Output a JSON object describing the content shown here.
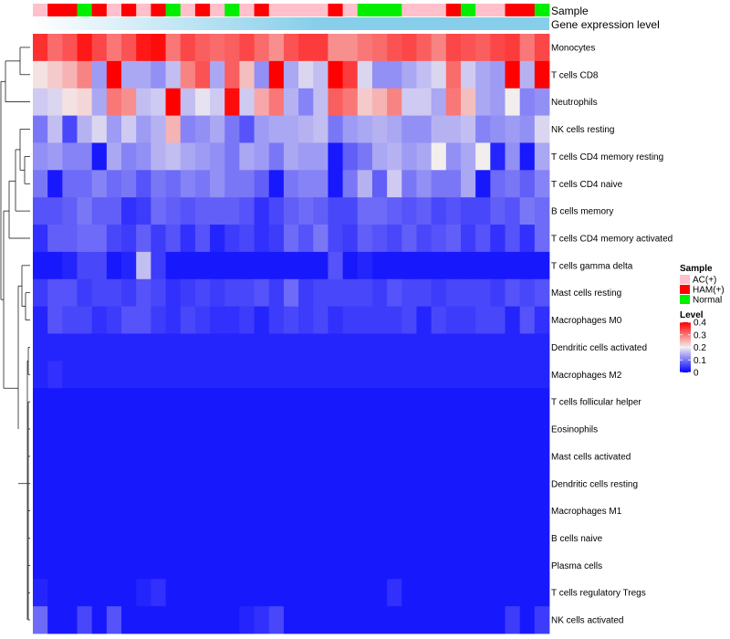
{
  "chart_data": {
    "type": "heatmap",
    "title": "",
    "annotation_labels": {
      "sample": "Sample",
      "gene_expression": "Gene expression level"
    },
    "rows": [
      "Monocytes",
      "T cells CD8",
      "Neutrophils",
      "NK cells resting",
      "T cells CD4 memory resting",
      "T cells CD4 naive",
      "B cells memory",
      "T cells CD4 memory activated",
      "T cells gamma delta",
      "Mast cells resting",
      "Macrophages M0",
      "Dendritic cells activated",
      "Macrophages M2",
      "T cells follicular helper",
      "Eosinophils",
      "Mast cells activated",
      "Dendritic cells resting",
      "Macrophages M1",
      "B cells naive",
      "Plasma cells",
      "T cells regulatory  Tregs",
      "NK cells activated"
    ],
    "sample_groups": [
      "AC",
      "HAM",
      "HAM",
      "NOR",
      "HAM",
      "AC",
      "HAM",
      "AC",
      "HAM",
      "NOR",
      "AC",
      "HAM",
      "AC",
      "NOR",
      "AC",
      "HAM",
      "AC",
      "AC",
      "AC",
      "AC",
      "HAM",
      "AC",
      "NOR",
      "NOR",
      "NOR",
      "AC",
      "AC",
      "AC",
      "HAM",
      "NOR",
      "AC",
      "AC",
      "HAM",
      "HAM",
      "NOR"
    ],
    "color_scale": {
      "min": 0,
      "max": 0.4,
      "stops": [
        {
          "v": 0,
          "color": "#0000FF"
        },
        {
          "v": 0.2,
          "color": "#F3EEEE"
        },
        {
          "v": 0.4,
          "color": "#FF0000"
        }
      ]
    },
    "values": [
      [
        0.36,
        0.31,
        0.33,
        0.38,
        0.34,
        0.3,
        0.33,
        0.38,
        0.39,
        0.3,
        0.34,
        0.32,
        0.31,
        0.32,
        0.34,
        0.31,
        0.28,
        0.33,
        0.35,
        0.35,
        0.28,
        0.28,
        0.3,
        0.31,
        0.33,
        0.34,
        0.32,
        0.29,
        0.34,
        0.33,
        0.32,
        0.34,
        0.35,
        0.3,
        0.34
      ],
      [
        0.21,
        0.23,
        0.25,
        0.29,
        0.13,
        0.4,
        0.14,
        0.14,
        0.12,
        0.16,
        0.29,
        0.33,
        0.14,
        0.32,
        0.24,
        0.12,
        0.4,
        0.14,
        0.18,
        0.16,
        0.4,
        0.35,
        0.18,
        0.12,
        0.12,
        0.14,
        0.16,
        0.18,
        0.31,
        0.17,
        0.14,
        0.13,
        0.4,
        0.15,
        0.4
      ],
      [
        0.17,
        0.18,
        0.21,
        0.22,
        0.14,
        0.3,
        0.28,
        0.16,
        0.17,
        0.4,
        0.16,
        0.19,
        0.17,
        0.39,
        0.17,
        0.26,
        0.3,
        0.15,
        0.11,
        0.16,
        0.32,
        0.3,
        0.23,
        0.25,
        0.29,
        0.17,
        0.17,
        0.14,
        0.3,
        0.24,
        0.14,
        0.13,
        0.2,
        0.11,
        0.12
      ],
      [
        0.1,
        0.16,
        0.06,
        0.15,
        0.18,
        0.13,
        0.17,
        0.13,
        0.15,
        0.25,
        0.11,
        0.12,
        0.14,
        0.1,
        0.07,
        0.13,
        0.14,
        0.14,
        0.15,
        0.16,
        0.1,
        0.13,
        0.14,
        0.15,
        0.14,
        0.12,
        0.12,
        0.15,
        0.15,
        0.16,
        0.11,
        0.12,
        0.13,
        0.12,
        0.18
      ],
      [
        0.12,
        0.13,
        0.11,
        0.11,
        0.02,
        0.14,
        0.11,
        0.12,
        0.15,
        0.16,
        0.14,
        0.13,
        0.12,
        0.1,
        0.14,
        0.13,
        0.1,
        0.14,
        0.13,
        0.13,
        0.02,
        0.08,
        0.1,
        0.14,
        0.15,
        0.13,
        0.14,
        0.2,
        0.12,
        0.14,
        0.2,
        0.03,
        0.12,
        0.02,
        0.14
      ],
      [
        0.1,
        0.02,
        0.09,
        0.09,
        0.11,
        0.09,
        0.1,
        0.07,
        0.1,
        0.09,
        0.11,
        0.1,
        0.12,
        0.1,
        0.1,
        0.08,
        0.02,
        0.1,
        0.11,
        0.11,
        0.02,
        0.1,
        0.15,
        0.08,
        0.17,
        0.1,
        0.12,
        0.1,
        0.1,
        0.14,
        0.02,
        0.09,
        0.1,
        0.08,
        0.11
      ],
      [
        0.07,
        0.07,
        0.08,
        0.1,
        0.08,
        0.08,
        0.04,
        0.05,
        0.09,
        0.08,
        0.07,
        0.08,
        0.08,
        0.08,
        0.07,
        0.04,
        0.06,
        0.08,
        0.09,
        0.08,
        0.06,
        0.06,
        0.09,
        0.09,
        0.08,
        0.07,
        0.08,
        0.06,
        0.07,
        0.06,
        0.06,
        0.08,
        0.07,
        0.1,
        0.09
      ],
      [
        0.04,
        0.08,
        0.08,
        0.09,
        0.09,
        0.06,
        0.05,
        0.08,
        0.05,
        0.07,
        0.04,
        0.07,
        0.03,
        0.05,
        0.06,
        0.04,
        0.05,
        0.09,
        0.07,
        0.1,
        0.06,
        0.05,
        0.08,
        0.07,
        0.06,
        0.08,
        0.06,
        0.07,
        0.08,
        0.05,
        0.07,
        0.04,
        0.07,
        0.04,
        0.09
      ],
      [
        0.02,
        0.02,
        0.03,
        0.06,
        0.06,
        0.02,
        0.03,
        0.16,
        0.05,
        0.02,
        0.02,
        0.02,
        0.02,
        0.02,
        0.02,
        0.02,
        0.02,
        0.02,
        0.02,
        0.02,
        0.07,
        0.02,
        0.03,
        0.02,
        0.02,
        0.02,
        0.02,
        0.02,
        0.02,
        0.02,
        0.02,
        0.02,
        0.02,
        0.02,
        0.02
      ],
      [
        0.05,
        0.07,
        0.07,
        0.05,
        0.06,
        0.06,
        0.05,
        0.07,
        0.06,
        0.04,
        0.05,
        0.06,
        0.05,
        0.06,
        0.06,
        0.07,
        0.05,
        0.09,
        0.05,
        0.06,
        0.06,
        0.06,
        0.06,
        0.05,
        0.07,
        0.06,
        0.06,
        0.05,
        0.06,
        0.06,
        0.06,
        0.05,
        0.07,
        0.06,
        0.07
      ],
      [
        0.03,
        0.07,
        0.06,
        0.06,
        0.04,
        0.05,
        0.07,
        0.07,
        0.05,
        0.04,
        0.06,
        0.05,
        0.04,
        0.04,
        0.05,
        0.03,
        0.05,
        0.06,
        0.05,
        0.06,
        0.04,
        0.05,
        0.05,
        0.05,
        0.05,
        0.06,
        0.03,
        0.06,
        0.05,
        0.05,
        0.06,
        0.06,
        0.03,
        0.07,
        0.04
      ],
      [
        0.03,
        0.03,
        0.03,
        0.03,
        0.03,
        0.03,
        0.03,
        0.03,
        0.03,
        0.03,
        0.03,
        0.03,
        0.03,
        0.03,
        0.03,
        0.03,
        0.03,
        0.03,
        0.03,
        0.03,
        0.03,
        0.03,
        0.03,
        0.03,
        0.03,
        0.03,
        0.03,
        0.03,
        0.03,
        0.03,
        0.03,
        0.03,
        0.03,
        0.03,
        0.03
      ],
      [
        0.03,
        0.04,
        0.03,
        0.03,
        0.03,
        0.03,
        0.03,
        0.03,
        0.03,
        0.03,
        0.03,
        0.03,
        0.03,
        0.03,
        0.03,
        0.03,
        0.03,
        0.03,
        0.03,
        0.03,
        0.03,
        0.03,
        0.03,
        0.03,
        0.03,
        0.03,
        0.03,
        0.03,
        0.03,
        0.03,
        0.03,
        0.03,
        0.03,
        0.03,
        0.03
      ],
      [
        0.02,
        0.02,
        0.02,
        0.02,
        0.02,
        0.02,
        0.02,
        0.02,
        0.02,
        0.02,
        0.02,
        0.02,
        0.02,
        0.02,
        0.02,
        0.02,
        0.02,
        0.02,
        0.02,
        0.02,
        0.02,
        0.02,
        0.02,
        0.02,
        0.02,
        0.02,
        0.02,
        0.02,
        0.02,
        0.02,
        0.02,
        0.02,
        0.02,
        0.02,
        0.02
      ],
      [
        0.02,
        0.02,
        0.02,
        0.02,
        0.02,
        0.02,
        0.02,
        0.02,
        0.02,
        0.02,
        0.02,
        0.02,
        0.02,
        0.02,
        0.02,
        0.02,
        0.02,
        0.02,
        0.02,
        0.02,
        0.02,
        0.02,
        0.02,
        0.02,
        0.02,
        0.02,
        0.02,
        0.02,
        0.02,
        0.02,
        0.02,
        0.02,
        0.02,
        0.02,
        0.02
      ],
      [
        0.02,
        0.02,
        0.02,
        0.02,
        0.02,
        0.02,
        0.02,
        0.02,
        0.02,
        0.02,
        0.02,
        0.02,
        0.02,
        0.02,
        0.02,
        0.02,
        0.02,
        0.02,
        0.02,
        0.02,
        0.02,
        0.02,
        0.02,
        0.02,
        0.02,
        0.02,
        0.02,
        0.02,
        0.02,
        0.02,
        0.02,
        0.02,
        0.02,
        0.02,
        0.02
      ],
      [
        0.02,
        0.02,
        0.02,
        0.02,
        0.02,
        0.02,
        0.02,
        0.02,
        0.02,
        0.02,
        0.02,
        0.02,
        0.02,
        0.02,
        0.02,
        0.02,
        0.02,
        0.02,
        0.02,
        0.02,
        0.02,
        0.02,
        0.02,
        0.02,
        0.02,
        0.02,
        0.02,
        0.02,
        0.02,
        0.02,
        0.02,
        0.02,
        0.02,
        0.02,
        0.02
      ],
      [
        0.02,
        0.02,
        0.02,
        0.02,
        0.02,
        0.02,
        0.02,
        0.02,
        0.02,
        0.02,
        0.02,
        0.02,
        0.02,
        0.02,
        0.02,
        0.02,
        0.02,
        0.02,
        0.02,
        0.02,
        0.02,
        0.02,
        0.02,
        0.02,
        0.02,
        0.02,
        0.02,
        0.02,
        0.02,
        0.02,
        0.02,
        0.02,
        0.02,
        0.02,
        0.02
      ],
      [
        0.02,
        0.02,
        0.02,
        0.02,
        0.02,
        0.02,
        0.02,
        0.02,
        0.02,
        0.02,
        0.02,
        0.02,
        0.02,
        0.02,
        0.02,
        0.02,
        0.02,
        0.02,
        0.02,
        0.02,
        0.02,
        0.02,
        0.02,
        0.02,
        0.02,
        0.02,
        0.02,
        0.02,
        0.02,
        0.02,
        0.02,
        0.02,
        0.02,
        0.02,
        0.02
      ],
      [
        0.02,
        0.02,
        0.02,
        0.02,
        0.02,
        0.02,
        0.02,
        0.02,
        0.02,
        0.02,
        0.02,
        0.02,
        0.02,
        0.02,
        0.02,
        0.02,
        0.02,
        0.02,
        0.02,
        0.02,
        0.02,
        0.02,
        0.02,
        0.02,
        0.02,
        0.02,
        0.02,
        0.02,
        0.02,
        0.02,
        0.02,
        0.02,
        0.02,
        0.02,
        0.02
      ],
      [
        0.03,
        0.02,
        0.02,
        0.02,
        0.02,
        0.02,
        0.02,
        0.03,
        0.04,
        0.02,
        0.02,
        0.02,
        0.02,
        0.02,
        0.02,
        0.02,
        0.02,
        0.02,
        0.02,
        0.02,
        0.02,
        0.02,
        0.02,
        0.02,
        0.04,
        0.02,
        0.02,
        0.02,
        0.02,
        0.02,
        0.02,
        0.02,
        0.02,
        0.02,
        0.02
      ],
      [
        0.09,
        0.02,
        0.02,
        0.06,
        0.02,
        0.07,
        0.02,
        0.02,
        0.02,
        0.02,
        0.02,
        0.02,
        0.02,
        0.02,
        0.03,
        0.04,
        0.06,
        0.02,
        0.02,
        0.02,
        0.02,
        0.02,
        0.02,
        0.02,
        0.02,
        0.02,
        0.02,
        0.02,
        0.02,
        0.02,
        0.02,
        0.02,
        0.05,
        0.02,
        0.05
      ]
    ],
    "legend": {
      "sample_title": "Sample",
      "sample_entries": [
        {
          "key": "AC",
          "label": "AC(+)",
          "color": "#FFC0CB"
        },
        {
          "key": "HAM",
          "label": "HAM(+)",
          "color": "#FF0000"
        },
        {
          "key": "NOR",
          "label": "Normal",
          "color": "#00EE00"
        }
      ],
      "level_title": "Level",
      "level_ticks": [
        {
          "v": 0.4,
          "label": "0.4"
        },
        {
          "v": 0.3,
          "label": "0.3"
        },
        {
          "v": 0.2,
          "label": "0.2"
        },
        {
          "v": 0.1,
          "label": "0.1"
        },
        {
          "v": 0,
          "label": "0"
        }
      ]
    },
    "expression_bar_color": "#87CEEB",
    "expression_bar_start_color": "#ffffff"
  }
}
